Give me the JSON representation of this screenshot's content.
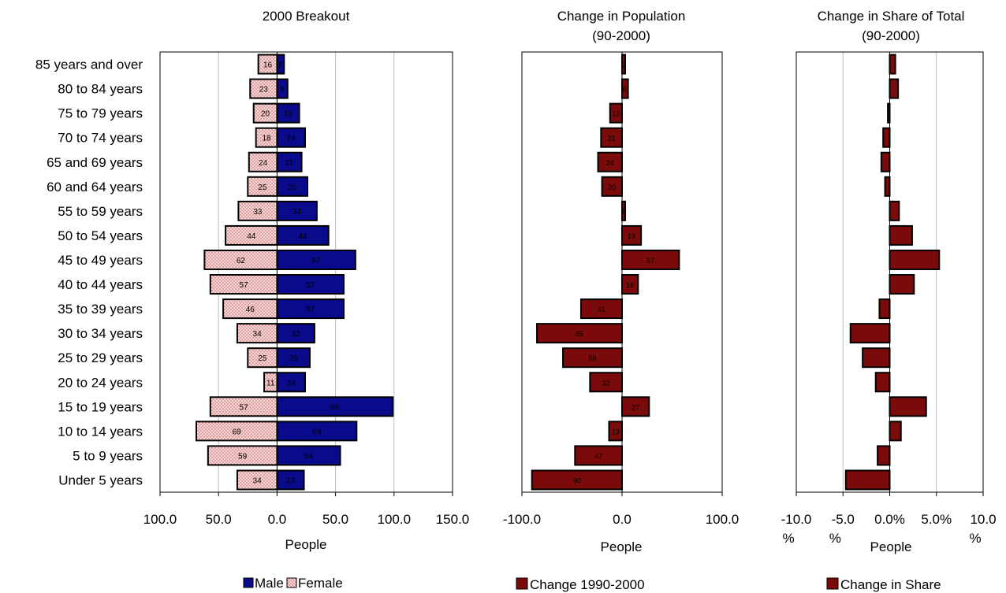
{
  "colors": {
    "male": "#0a0a8c",
    "female_fill": "#f6d7d7",
    "female_dots": "#c05050",
    "change": "#7b0a0a",
    "grid": "#bfbfbf"
  },
  "age_groups": [
    "85 years and over",
    "80 to 84 years",
    "75 to 79 years",
    "70 to 74 years",
    "65 and 69 years",
    "60 and 64 years",
    "55 to 59 years",
    "50 to 54 years",
    "45 to 49 years",
    "40 to 44 years",
    "35 to 39 years",
    "30 to 34 years",
    "25 to 29 years",
    "20 to 24 years",
    "15 to 19 years",
    "10 to 14 years",
    "5 to 9 years",
    "Under 5 years"
  ],
  "chart_data": [
    {
      "type": "bar",
      "orientation": "horizontal",
      "title": "2000 Breakout",
      "xlabel": "People",
      "xlim": [
        -100,
        150
      ],
      "x_ticks": [
        "100.0",
        "50.0",
        "0.0",
        "50.0",
        "100.0",
        "150.0"
      ],
      "grid": true,
      "legend_position": "bottom",
      "series": [
        {
          "name": "Male",
          "values": [
            6,
            9,
            19,
            24,
            21,
            26,
            34,
            44,
            67,
            57,
            57,
            32,
            28,
            24,
            99,
            68,
            54,
            23
          ]
        },
        {
          "name": "Female",
          "values": [
            16,
            23,
            20,
            18,
            24,
            25,
            33,
            44,
            62,
            57,
            46,
            34,
            25,
            11,
            57,
            69,
            59,
            34
          ]
        }
      ]
    },
    {
      "type": "bar",
      "orientation": "horizontal",
      "title": "Change in Population",
      "subtitle": "(90-2000)",
      "xlabel": "People",
      "xlim": [
        -100,
        100
      ],
      "x_ticks": [
        "-100.0",
        "0.0",
        "100.0"
      ],
      "grid": false,
      "legend_position": "bottom",
      "series": [
        {
          "name": "Change 1990-2000",
          "values": [
            3,
            6,
            -12,
            -21,
            -24,
            -20,
            0,
            19,
            57,
            16,
            -41,
            -85,
            -59,
            -32,
            27,
            -13,
            -47,
            -90
          ]
        }
      ],
      "data_labels": [
        "3",
        "6",
        "12",
        "21",
        "24",
        "20",
        "0",
        "19",
        "57",
        "16",
        "41",
        "85",
        "59",
        "32",
        "27",
        "13",
        "47",
        "90"
      ]
    },
    {
      "type": "bar",
      "orientation": "horizontal",
      "title": "Change in Share of Total",
      "subtitle": "(90-2000)",
      "xlabel": "People",
      "xlim": [
        -10,
        10
      ],
      "x_ticks": [
        "-10.0 %",
        "-5.0 %",
        "0.0%",
        "5.0%",
        "10.0 %"
      ],
      "grid": true,
      "legend_position": "bottom",
      "series": [
        {
          "name": "Change in Share",
          "values": [
            0.6,
            0.9,
            -0.2,
            -0.7,
            -0.9,
            -0.5,
            1.0,
            2.4,
            5.3,
            2.6,
            -1.1,
            -4.2,
            -2.9,
            -1.5,
            3.9,
            1.2,
            -1.3,
            -4.7
          ]
        }
      ]
    }
  ]
}
